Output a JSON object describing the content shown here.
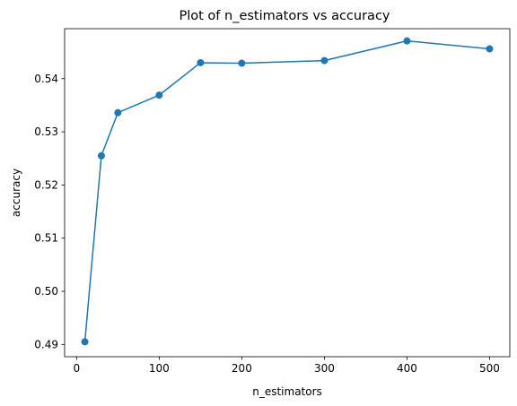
{
  "chart_data": {
    "type": "line",
    "title": "Plot of n_estimators vs accuracy",
    "xlabel": "n_estimators",
    "ylabel": "accuracy",
    "x": [
      10,
      30,
      50,
      100,
      150,
      200,
      300,
      400,
      500
    ],
    "series": [
      {
        "values": [
          0.4905,
          0.5255,
          0.5336,
          0.5369,
          0.543,
          0.5429,
          0.5434,
          0.5471,
          0.5456
        ],
        "color": "#1f77b4",
        "marker": "circle"
      }
    ],
    "xlim": [
      -14.5,
      524.5
    ],
    "ylim": [
      0.4877,
      0.5494
    ],
    "xticks": [
      0,
      100,
      200,
      300,
      400,
      500
    ],
    "yticks": [
      0.49,
      0.5,
      0.51,
      0.52,
      0.53,
      0.54
    ],
    "ytick_labels": [
      "0.49",
      "0.50",
      "0.51",
      "0.52",
      "0.53",
      "0.54"
    ],
    "grid": false,
    "legend": "none"
  }
}
